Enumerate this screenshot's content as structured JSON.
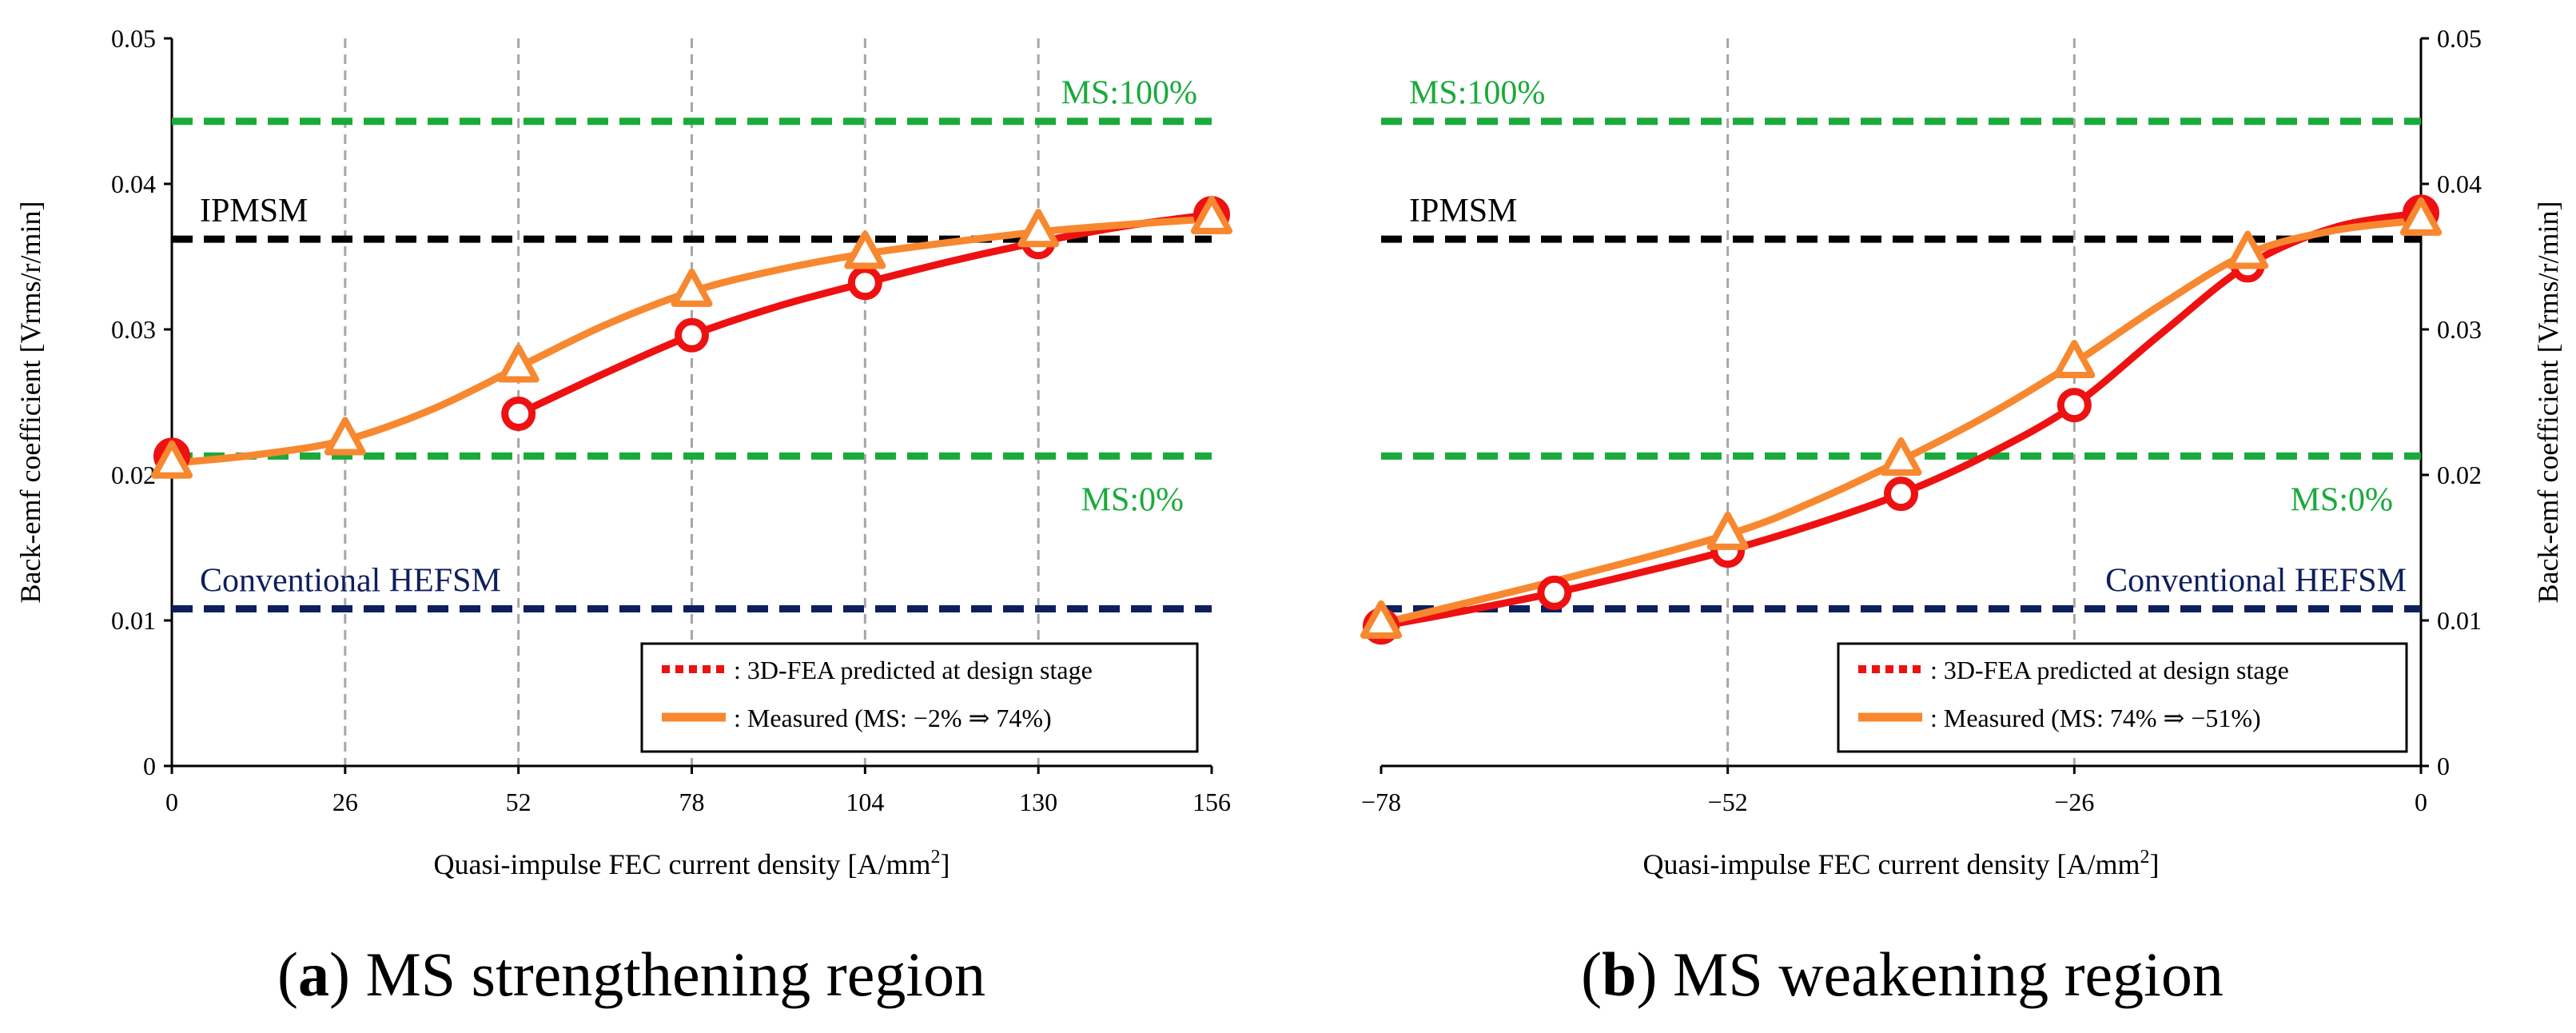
{
  "chart_data": [
    {
      "type": "line",
      "caption_letter": "a",
      "caption_text": " MS strengthening region",
      "xlabel_main": "Quasi-impulse FEC current density [A/mm",
      "xlabel_sup": "2",
      "xlabel_end": "]",
      "ylabel": "Back-emf coefficient [Vrms/r/min]",
      "xlim": [
        0,
        156
      ],
      "ylim": [
        0,
        0.05
      ],
      "xticks": [
        0,
        26,
        52,
        78,
        104,
        130,
        156
      ],
      "xtick_labels": [
        "0",
        "26",
        "52",
        "78",
        "104",
        "130",
        "156"
      ],
      "yticks": [
        0,
        0.01,
        0.02,
        0.03,
        0.04,
        0.05
      ],
      "ytick_labels": [
        "0",
        "0.01",
        "0.02",
        "0.03",
        "0.04",
        "0.05"
      ],
      "x_grid": [
        26,
        52,
        78,
        104,
        130
      ],
      "reference_lines": [
        {
          "label": "MS:100%",
          "y": 0.0443,
          "color": "#1aaa3c",
          "label_pos": "right"
        },
        {
          "label": "IPMSM",
          "y": 0.0362,
          "color": "#000000",
          "label_pos": "left"
        },
        {
          "label": "MS:0%",
          "y": 0.0213,
          "color": "#1aaa3c",
          "label_pos": "right-below"
        },
        {
          "label": "Conventional HEFSM",
          "y": 0.0108,
          "color": "#0d1f5c",
          "label_pos": "left"
        }
      ],
      "series": [
        {
          "name": ": 3D-FEA predicted at design stage",
          "color": "#ee1111",
          "marker": "circle",
          "points": [
            [
              0,
              0.0213
            ],
            [
              52,
              0.0242
            ],
            [
              78,
              0.0296
            ],
            [
              104,
              0.0332
            ],
            [
              130,
              0.036
            ],
            [
              156,
              0.0379
            ]
          ],
          "curve": [
            [
              52,
              0.0242
            ],
            [
              65,
              0.027
            ],
            [
              78,
              0.0296
            ],
            [
              91,
              0.0316
            ],
            [
              104,
              0.0332
            ],
            [
              117,
              0.0347
            ],
            [
              130,
              0.036
            ],
            [
              143,
              0.0371
            ],
            [
              156,
              0.0379
            ]
          ]
        },
        {
          "name": ": Measured (MS: −2% ⇒ 74%)",
          "color": "#f7882f",
          "marker": "triangle",
          "points": [
            [
              0,
              0.0208
            ],
            [
              26,
              0.0224
            ],
            [
              52,
              0.0274
            ],
            [
              78,
              0.0326
            ],
            [
              104,
              0.0352
            ],
            [
              130,
              0.0367
            ],
            [
              156,
              0.0376
            ]
          ],
          "curve": [
            [
              0,
              0.0208
            ],
            [
              13,
              0.0214
            ],
            [
              26,
              0.0224
            ],
            [
              39,
              0.0245
            ],
            [
              52,
              0.0274
            ],
            [
              65,
              0.0303
            ],
            [
              78,
              0.0326
            ],
            [
              91,
              0.0341
            ],
            [
              104,
              0.0352
            ],
            [
              117,
              0.036
            ],
            [
              130,
              0.0367
            ],
            [
              143,
              0.0372
            ],
            [
              156,
              0.0376
            ]
          ]
        }
      ],
      "legend": {
        "position": "bottom-right"
      }
    },
    {
      "type": "line",
      "caption_letter": "b",
      "caption_text": " MS weakening region",
      "xlabel_main": "Quasi-impulse FEC current density [A/mm",
      "xlabel_sup": "2",
      "xlabel_end": "]",
      "ylabel": "Back-emf coefficient [Vrms/r/min]",
      "xlim": [
        -78,
        0
      ],
      "ylim": [
        0,
        0.05
      ],
      "xticks": [
        -78,
        -52,
        -26,
        0
      ],
      "xtick_labels": [
        "−78",
        "−52",
        "−26",
        "0"
      ],
      "yticks": [
        0,
        0.01,
        0.02,
        0.03,
        0.04,
        0.05
      ],
      "ytick_labels": [
        "0",
        "0.01",
        "0.02",
        "0.03",
        "0.04",
        "0.05"
      ],
      "x_grid": [
        -52,
        -26
      ],
      "reference_lines": [
        {
          "label": "MS:100%",
          "y": 0.0443,
          "color": "#1aaa3c",
          "label_pos": "left"
        },
        {
          "label": "IPMSM",
          "y": 0.0362,
          "color": "#000000",
          "label_pos": "left"
        },
        {
          "label": "MS:0%",
          "y": 0.0213,
          "color": "#1aaa3c",
          "label_pos": "right-below"
        },
        {
          "label": "Conventional HEFSM",
          "y": 0.0108,
          "color": "#0d1f5c",
          "label_pos": "right"
        }
      ],
      "series": [
        {
          "name": ": 3D-FEA predicted at design stage",
          "color": "#ee1111",
          "marker": "circle",
          "points": [
            [
              -78,
              0.0096
            ],
            [
              -65,
              0.0119
            ],
            [
              -52,
              0.0148
            ],
            [
              -39,
              0.0187
            ],
            [
              -26,
              0.0248
            ],
            [
              -13,
              0.0344
            ],
            [
              0,
              0.038
            ]
          ],
          "curve": [
            [
              -78,
              0.0096
            ],
            [
              -71.5,
              0.0107
            ],
            [
              -65,
              0.0119
            ],
            [
              -58.5,
              0.0133
            ],
            [
              -52,
              0.0148
            ],
            [
              -45.5,
              0.0166
            ],
            [
              -39,
              0.0187
            ],
            [
              -32.5,
              0.0214
            ],
            [
              -26,
              0.0248
            ],
            [
              -19.5,
              0.0297
            ],
            [
              -13,
              0.0344
            ],
            [
              -6.5,
              0.037
            ],
            [
              0,
              0.038
            ]
          ]
        },
        {
          "name": ": Measured (MS: 74% ⇒ −51%)",
          "color": "#f7882f",
          "marker": "triangle",
          "points": [
            [
              -78,
              0.0098
            ],
            [
              -52,
              0.0159
            ],
            [
              -39,
              0.021
            ],
            [
              -26,
              0.0277
            ],
            [
              -13,
              0.0352
            ],
            [
              0,
              0.0375
            ]
          ],
          "curve": [
            [
              -78,
              0.0098
            ],
            [
              -65,
              0.0127
            ],
            [
              -52,
              0.0159
            ],
            [
              -45.5,
              0.0182
            ],
            [
              -39,
              0.021
            ],
            [
              -32.5,
              0.0241
            ],
            [
              -26,
              0.0277
            ],
            [
              -19.5,
              0.0317
            ],
            [
              -13,
              0.0352
            ],
            [
              -6.5,
              0.0368
            ],
            [
              0,
              0.0375
            ]
          ]
        }
      ],
      "legend": {
        "position": "bottom-right"
      }
    }
  ]
}
